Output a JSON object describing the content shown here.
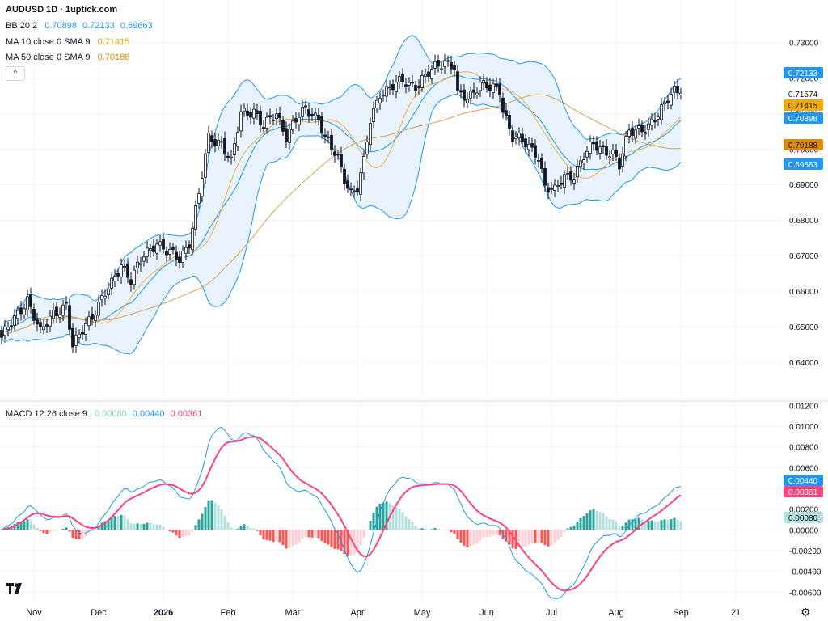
{
  "header": {
    "title": "AUDUSD 1D · 1uptick.com",
    "bb": {
      "label": "BB 20 2",
      "basis": "0.70898",
      "upper": "0.72133",
      "lower": "0.69663"
    },
    "ma10": {
      "label": "MA 10 close 0 SMA 9",
      "value": "0.71415"
    },
    "ma50": {
      "label": "MA 50 close 0 SMA 9",
      "value": "0.70188"
    },
    "macd": {
      "label": "MACD 12 26 close 9",
      "hist": "0.00080",
      "macd": "0.00440",
      "signal": "0.00361"
    }
  },
  "colors": {
    "up": "#ffffff",
    "down": "#131722",
    "bb_line": "#2196f3",
    "bb_fill": "#e3f0fb",
    "ma10": "#f2b13c",
    "ma50": "#d7a25a",
    "macd_line": "#2196f3",
    "signal_line": "#ff4081",
    "hist_pos_strong": "#26a69a",
    "hist_pos_weak": "#b2dfdb",
    "hist_neg_strong": "#ff5252",
    "hist_neg_weak": "#ffcdd2",
    "badge_current": "#131722"
  },
  "icons": {
    "collapse": "chevron-up-icon",
    "logo": "tradingview-logo-icon",
    "settings": "gear-icon"
  },
  "chart_data": [
    {
      "type": "candlestick",
      "name": "AUDUSD 1D",
      "ylim": [
        0.635,
        0.731
      ],
      "y_ticks": [
        "0.73000",
        "0.72000",
        "0.71000",
        "0.70000",
        "0.69000",
        "0.68000",
        "0.67000",
        "0.66000",
        "0.65000",
        "0.64000"
      ],
      "x_labels": [
        "Nov",
        "Dec",
        "2026",
        "Feb",
        "Mar",
        "Apr",
        "May",
        "Jun",
        "Jul",
        "Aug",
        "Sep",
        "21"
      ],
      "x_label_bars": [
        10,
        30,
        50,
        70,
        90,
        110,
        130,
        150,
        170,
        190,
        210,
        227
      ],
      "price_badges": {
        "upper": "0.72133",
        "last": "0.71574",
        "ma10": "0.71415",
        "basis": "0.70898",
        "ma50": "0.70188",
        "lower": "0.69663"
      },
      "close_anchors": [
        [
          0,
          0.647
        ],
        [
          4,
          0.652
        ],
        [
          8,
          0.658
        ],
        [
          12,
          0.648
        ],
        [
          16,
          0.654
        ],
        [
          20,
          0.656
        ],
        [
          22,
          0.644
        ],
        [
          26,
          0.651
        ],
        [
          30,
          0.656
        ],
        [
          34,
          0.662
        ],
        [
          37,
          0.668
        ],
        [
          40,
          0.663
        ],
        [
          44,
          0.67
        ],
        [
          48,
          0.674
        ],
        [
          51,
          0.671
        ],
        [
          55,
          0.669
        ],
        [
          58,
          0.674
        ],
        [
          61,
          0.687
        ],
        [
          64,
          0.703
        ],
        [
          68,
          0.702
        ],
        [
          71,
          0.696
        ],
        [
          74,
          0.71
        ],
        [
          78,
          0.711
        ],
        [
          81,
          0.706
        ],
        [
          85,
          0.71
        ],
        [
          88,
          0.704
        ],
        [
          91,
          0.708
        ],
        [
          94,
          0.711
        ],
        [
          98,
          0.709
        ],
        [
          100,
          0.703
        ],
        [
          104,
          0.697
        ],
        [
          106,
          0.692
        ],
        [
          108,
          0.688
        ],
        [
          110,
          0.689
        ],
        [
          112,
          0.696
        ],
        [
          114,
          0.708
        ],
        [
          117,
          0.716
        ],
        [
          120,
          0.717
        ],
        [
          124,
          0.719
        ],
        [
          128,
          0.718
        ],
        [
          131,
          0.72
        ],
        [
          134,
          0.723
        ],
        [
          137,
          0.725
        ],
        [
          140,
          0.723
        ],
        [
          141,
          0.715
        ],
        [
          144,
          0.714
        ],
        [
          148,
          0.719
        ],
        [
          151,
          0.717
        ],
        [
          154,
          0.716
        ],
        [
          155,
          0.711
        ],
        [
          158,
          0.704
        ],
        [
          160,
          0.703
        ],
        [
          163,
          0.7
        ],
        [
          166,
          0.698
        ],
        [
          168,
          0.69
        ],
        [
          171,
          0.688
        ],
        [
          174,
          0.692
        ],
        [
          177,
          0.693
        ],
        [
          180,
          0.698
        ],
        [
          183,
          0.701
        ],
        [
          186,
          0.7
        ],
        [
          189,
          0.699
        ],
        [
          191,
          0.695
        ],
        [
          194,
          0.705
        ],
        [
          197,
          0.706
        ],
        [
          200,
          0.706
        ],
        [
          203,
          0.709
        ],
        [
          206,
          0.715
        ],
        [
          208,
          0.717
        ],
        [
          210,
          0.7157
        ]
      ],
      "series": [
        {
          "name": "BB upper",
          "last": 0.72133
        },
        {
          "name": "BB basis",
          "last": 0.70898
        },
        {
          "name": "BB lower",
          "last": 0.69663
        },
        {
          "name": "MA 10",
          "last": 0.71415
        },
        {
          "name": "MA 50",
          "last": 0.70188
        }
      ]
    },
    {
      "type": "bar",
      "name": "MACD 12 26 close 9",
      "ylim": [
        -0.0066,
        0.0121
      ],
      "y_ticks": [
        "0.01200",
        "0.01000",
        "0.00800",
        "0.00600",
        "0.00400",
        "0.00200",
        "0.00000",
        "-0.00200",
        "-0.00400",
        "-0.00600"
      ],
      "badges": {
        "macd": "0.00440",
        "signal": "0.00361",
        "hist": "0.00080"
      },
      "series": [
        {
          "name": "MACD",
          "last": 0.0044
        },
        {
          "name": "Signal",
          "last": 0.00361
        },
        {
          "name": "Histogram",
          "last": 0.0008
        }
      ]
    }
  ]
}
